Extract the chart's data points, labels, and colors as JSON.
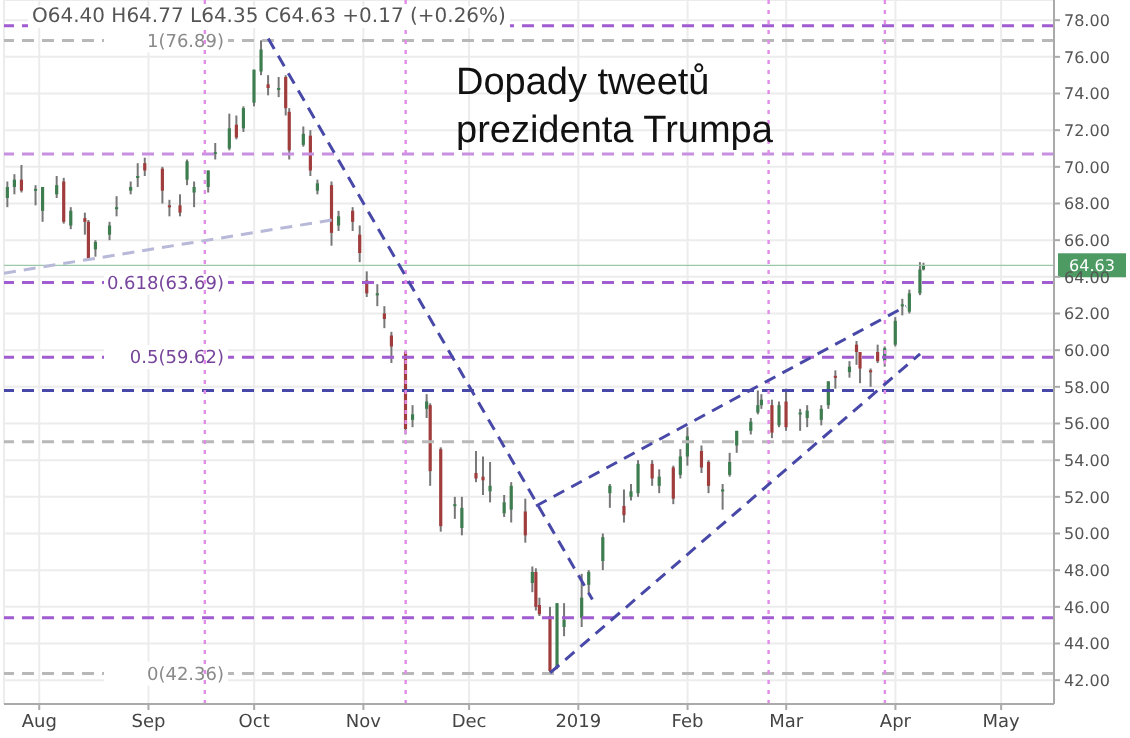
{
  "chart_data": {
    "type": "candlestick",
    "x": [
      "2018-07-23",
      "2018-07-25",
      "2018-07-27",
      "2018-07-31",
      "2018-08-02",
      "2018-08-06",
      "2018-08-08",
      "2018-08-10",
      "2018-08-14",
      "2018-08-15",
      "2018-08-17",
      "2018-08-21",
      "2018-08-23",
      "2018-08-27",
      "2018-08-29",
      "2018-08-31",
      "2018-09-05",
      "2018-09-07",
      "2018-09-10",
      "2018-09-12",
      "2018-09-14",
      "2018-09-18",
      "2018-09-20",
      "2018-09-24",
      "2018-09-26",
      "2018-09-28",
      "2018-10-01",
      "2018-10-03",
      "2018-10-05",
      "2018-10-08",
      "2018-10-10",
      "2018-10-11",
      "2018-10-15",
      "2018-10-17",
      "2018-10-19",
      "2018-10-23",
      "2018-10-25",
      "2018-10-29",
      "2018-10-31",
      "2018-11-02",
      "2018-11-05",
      "2018-11-07",
      "2018-11-09",
      "2018-11-13",
      "2018-11-15",
      "2018-11-19",
      "2018-11-20",
      "2018-11-23",
      "2018-11-27",
      "2018-11-29",
      "2018-12-03",
      "2018-12-05",
      "2018-12-07",
      "2018-12-11",
      "2018-12-13",
      "2018-12-17",
      "2018-12-19",
      "2018-12-20",
      "2018-12-21",
      "2018-12-24",
      "2018-12-26",
      "2018-12-28",
      "2019-01-02",
      "2019-01-04",
      "2019-01-08",
      "2019-01-10",
      "2019-01-14",
      "2019-01-16",
      "2019-01-18",
      "2019-01-22",
      "2019-01-24",
      "2019-01-28",
      "2019-01-30",
      "2019-02-01",
      "2019-02-05",
      "2019-02-07",
      "2019-02-11",
      "2019-02-13",
      "2019-02-15",
      "2019-02-19",
      "2019-02-21",
      "2019-02-22",
      "2019-02-25",
      "2019-02-27",
      "2019-03-01",
      "2019-03-05",
      "2019-03-07",
      "2019-03-11",
      "2019-03-13",
      "2019-03-15",
      "2019-03-19",
      "2019-03-21",
      "2019-03-22",
      "2019-03-25",
      "2019-03-27",
      "2019-03-29",
      "2019-04-01",
      "2019-04-03",
      "2019-04-05",
      "2019-04-08",
      "2019-04-09"
    ],
    "ohlc": [
      [
        68.3,
        69.2,
        67.8,
        68.9
      ],
      [
        68.9,
        69.6,
        68.5,
        69.3
      ],
      [
        69.3,
        70.1,
        68.6,
        68.7
      ],
      [
        68.7,
        69.0,
        67.9,
        68.8
      ],
      [
        67.6,
        68.9,
        67.0,
        68.9
      ],
      [
        68.5,
        69.5,
        68.3,
        69.0
      ],
      [
        69.2,
        69.4,
        66.9,
        67.0
      ],
      [
        66.8,
        67.8,
        66.6,
        67.6
      ],
      [
        67.2,
        67.5,
        66.3,
        67.0
      ],
      [
        67.0,
        67.1,
        64.9,
        65.0
      ],
      [
        65.5,
        66.0,
        65.1,
        65.9
      ],
      [
        66.3,
        67.0,
        66.0,
        66.8
      ],
      [
        67.7,
        68.4,
        67.3,
        67.8
      ],
      [
        68.7,
        69.2,
        68.5,
        68.9
      ],
      [
        69.5,
        70.2,
        68.9,
        69.5
      ],
      [
        70.2,
        70.5,
        69.5,
        69.8
      ],
      [
        69.9,
        70.0,
        68.0,
        68.7
      ],
      [
        67.9,
        68.2,
        67.3,
        67.8
      ],
      [
        67.9,
        68.5,
        67.3,
        67.5
      ],
      [
        69.3,
        70.4,
        69.0,
        70.3
      ],
      [
        68.6,
        69.2,
        67.8,
        68.9
      ],
      [
        68.9,
        69.8,
        68.6,
        69.8
      ],
      [
        70.8,
        71.3,
        70.4,
        70.8
      ],
      [
        71.0,
        72.9,
        70.9,
        72.1
      ],
      [
        72.3,
        72.8,
        71.5,
        71.6
      ],
      [
        72.1,
        73.3,
        71.9,
        73.2
      ],
      [
        73.5,
        75.3,
        73.3,
        75.3
      ],
      [
        75.2,
        76.9,
        75.0,
        76.4
      ],
      [
        74.5,
        75.0,
        73.9,
        74.3
      ],
      [
        74.3,
        74.9,
        73.8,
        74.3
      ],
      [
        74.9,
        75.0,
        72.8,
        73.2
      ],
      [
        73.0,
        73.2,
        70.4,
        70.9
      ],
      [
        71.2,
        72.2,
        71.1,
        71.8
      ],
      [
        71.7,
        72.0,
        69.5,
        69.8
      ],
      [
        68.7,
        69.3,
        68.5,
        69.1
      ],
      [
        69.0,
        69.2,
        65.7,
        66.4
      ],
      [
        66.8,
        67.6,
        66.5,
        67.3
      ],
      [
        67.6,
        67.8,
        66.5,
        67.0
      ],
      [
        66.3,
        66.8,
        64.8,
        65.3
      ],
      [
        63.8,
        64.3,
        62.9,
        63.1
      ],
      [
        63.1,
        63.6,
        62.4,
        63.1
      ],
      [
        62.0,
        62.4,
        61.2,
        61.7
      ],
      [
        60.8,
        61.0,
        59.3,
        60.2
      ],
      [
        59.9,
        60.0,
        55.4,
        55.7
      ],
      [
        56.2,
        57.0,
        55.8,
        56.5
      ],
      [
        56.8,
        57.6,
        56.3,
        57.2
      ],
      [
        57.0,
        57.1,
        52.6,
        53.4
      ],
      [
        54.6,
        54.7,
        50.1,
        50.4
      ],
      [
        51.5,
        52.0,
        50.8,
        51.6
      ],
      [
        50.3,
        52.0,
        49.9,
        51.4
      ],
      [
        53.3,
        54.5,
        52.8,
        53.0
      ],
      [
        53.1,
        54.2,
        52.1,
        52.9
      ],
      [
        52.3,
        53.9,
        51.7,
        52.6
      ],
      [
        51.1,
        52.1,
        50.9,
        51.7
      ],
      [
        51.3,
        52.8,
        50.6,
        52.6
      ],
      [
        51.2,
        51.9,
        49.5,
        49.9
      ],
      [
        47.3,
        48.2,
        46.8,
        47.9
      ],
      [
        47.9,
        48.1,
        45.8,
        46.0
      ],
      [
        46.1,
        46.5,
        45.5,
        45.6
      ],
      [
        45.5,
        46.0,
        42.4,
        42.5
      ],
      [
        42.7,
        46.2,
        42.6,
        46.2
      ],
      [
        44.9,
        46.2,
        44.4,
        45.3
      ],
      [
        45.4,
        47.8,
        44.9,
        46.5
      ],
      [
        47.2,
        48.0,
        46.7,
        47.9
      ],
      [
        48.5,
        50.0,
        48.0,
        49.8
      ],
      [
        52.2,
        52.7,
        51.4,
        52.6
      ],
      [
        51.5,
        52.4,
        50.6,
        51.0
      ],
      [
        52.0,
        52.7,
        51.8,
        52.3
      ],
      [
        52.2,
        54.0,
        52.0,
        53.8
      ],
      [
        53.8,
        54.0,
        52.6,
        53.0
      ],
      [
        52.6,
        53.5,
        52.2,
        53.1
      ],
      [
        53.6,
        53.7,
        51.6,
        51.9
      ],
      [
        53.2,
        54.6,
        53.0,
        54.2
      ],
      [
        54.2,
        55.8,
        53.7,
        55.3
      ],
      [
        54.5,
        54.8,
        53.3,
        53.6
      ],
      [
        53.9,
        54.0,
        52.2,
        52.6
      ],
      [
        52.3,
        52.7,
        51.3,
        52.4
      ],
      [
        53.2,
        54.4,
        53.1,
        53.9
      ],
      [
        54.8,
        55.6,
        54.4,
        55.6
      ],
      [
        55.6,
        56.3,
        55.4,
        56.1
      ],
      [
        56.6,
        57.8,
        56.5,
        57.0
      ],
      [
        57.0,
        57.6,
        56.8,
        57.3
      ],
      [
        57.0,
        57.3,
        55.2,
        55.5
      ],
      [
        55.9,
        57.2,
        55.8,
        57.0
      ],
      [
        57.2,
        57.9,
        55.6,
        55.8
      ],
      [
        56.6,
        56.8,
        55.6,
        56.6
      ],
      [
        56.3,
        57.0,
        55.8,
        56.7
      ],
      [
        56.2,
        57.0,
        55.9,
        56.8
      ],
      [
        57.0,
        58.3,
        56.8,
        58.3
      ],
      [
        58.6,
        58.9,
        57.9,
        58.5
      ],
      [
        58.8,
        59.4,
        58.5,
        59.1
      ],
      [
        60.3,
        60.5,
        59.2,
        59.9
      ],
      [
        59.9,
        59.9,
        58.2,
        59.0
      ],
      [
        58.9,
        59.0,
        58.0,
        58.8
      ],
      [
        59.9,
        60.3,
        59.3,
        59.4
      ],
      [
        59.4,
        60.2,
        59.1,
        60.1
      ],
      [
        60.3,
        61.8,
        60.2,
        61.6
      ],
      [
        62.5,
        62.8,
        61.9,
        62.5
      ],
      [
        62.1,
        63.3,
        62.0,
        63.1
      ],
      [
        63.1,
        64.8,
        63.0,
        64.4
      ],
      [
        64.4,
        64.77,
        64.35,
        64.63
      ]
    ],
    "series": [
      {
        "type": "line",
        "x": [
          "2018-10-05",
          "2019-01-05"
        ],
        "values": [
          77.0,
          46.4
        ],
        "color": "#4848a8",
        "line_style": "dashed"
      },
      {
        "type": "line",
        "x": [
          "2018-12-20",
          "2019-04-04"
        ],
        "values": [
          51.5,
          62.4
        ],
        "color": "#4848a8",
        "line_style": "dashed"
      },
      {
        "type": "line",
        "x": [
          "2018-12-24",
          "2019-04-08"
        ],
        "values": [
          42.4,
          59.8
        ],
        "color": "#4848a8",
        "line_style": "dashed"
      },
      {
        "type": "line",
        "x": [
          "2018-07-22",
          "2018-10-23"
        ],
        "values": [
          64.2,
          67.1
        ],
        "color": "#b8b8d8",
        "line_style": "dashed"
      }
    ],
    "xlim": [
      "2018-07-22",
      "2019-05-16"
    ],
    "xticks": [
      {
        "value": "2018-08-01",
        "label": "Aug"
      },
      {
        "value": "2018-09-01",
        "label": "Sep"
      },
      {
        "value": "2018-10-01",
        "label": "Oct"
      },
      {
        "value": "2018-11-01",
        "label": "Nov"
      },
      {
        "value": "2018-12-01",
        "label": "Dec"
      },
      {
        "value": "2019-01-01",
        "label": "2019"
      },
      {
        "value": "2019-02-01",
        "label": "Feb"
      },
      {
        "value": "2019-03-01",
        "label": "Mar"
      },
      {
        "value": "2019-04-01",
        "label": "Apr"
      },
      {
        "value": "2019-05-01",
        "label": "May"
      }
    ],
    "ylim": [
      40.7,
      79.1
    ],
    "yticks": [
      {
        "value": 42,
        "label": "42.00"
      },
      {
        "value": 44,
        "label": "44.00"
      },
      {
        "value": 46,
        "label": "46.00"
      },
      {
        "value": 48,
        "label": "48.00"
      },
      {
        "value": 50,
        "label": "50.00"
      },
      {
        "value": 52,
        "label": "52.00"
      },
      {
        "value": 54,
        "label": "54.00"
      },
      {
        "value": 56,
        "label": "56.00"
      },
      {
        "value": 58,
        "label": "58.00"
      },
      {
        "value": 60,
        "label": "60.00"
      },
      {
        "value": 62,
        "label": "62.00"
      },
      {
        "value": 64,
        "label": "64.00"
      },
      {
        "value": 66,
        "label": "66.00"
      },
      {
        "value": 68,
        "label": "68.00"
      },
      {
        "value": 70,
        "label": "70.00"
      },
      {
        "value": 72,
        "label": "72.00"
      },
      {
        "value": 74,
        "label": "74.00"
      },
      {
        "value": 76,
        "label": "76.00"
      },
      {
        "value": 78,
        "label": "78.00"
      }
    ],
    "grid": true,
    "annotations": [
      "O64.40 H64.77 L64.35 C64.63 +0.17 (+0.26%)",
      "Dopady tweetů prezidenta Trumpa"
    ],
    "ref_lines": [
      {
        "axis": "y",
        "value": 77.7,
        "label": null,
        "color": "#a05cd0",
        "line_style": "dashed"
      },
      {
        "axis": "y",
        "value": 76.89,
        "label": "1(76.89)",
        "color": "#b8b8b8",
        "line_style": "dashed"
      },
      {
        "axis": "y",
        "value": 70.7,
        "label": null,
        "color": "#c890e0",
        "line_style": "dashed"
      },
      {
        "axis": "y",
        "value": 64.63,
        "label": "64.63",
        "color": "#9cc8a8",
        "line_style": "solid"
      },
      {
        "axis": "y",
        "value": 63.69,
        "label": "0.618(63.69)",
        "color": "#a05cd0",
        "line_style": "dashed"
      },
      {
        "axis": "y",
        "value": 59.62,
        "label": "0.5(59.62)",
        "color": "#a05cd0",
        "line_style": "dashed"
      },
      {
        "axis": "y",
        "value": 57.8,
        "label": null,
        "color": "#4848a8",
        "line_style": "dashed"
      },
      {
        "axis": "y",
        "value": 55.0,
        "label": null,
        "color": "#b8b8b8",
        "line_style": "dashed"
      },
      {
        "axis": "y",
        "value": 45.4,
        "label": null,
        "color": "#a05cd0",
        "line_style": "dashed"
      },
      {
        "axis": "y",
        "value": 42.36,
        "label": "0(42.36)",
        "color": "#b8b8b8",
        "line_style": "dashed"
      },
      {
        "axis": "x",
        "value": "2018-09-17",
        "label": null,
        "color": "#e08ce8",
        "line_style": "dotted"
      },
      {
        "axis": "x",
        "value": "2018-11-13",
        "label": null,
        "color": "#e08ce8",
        "line_style": "dotted"
      },
      {
        "axis": "x",
        "value": "2019-02-24",
        "label": null,
        "color": "#e08ce8",
        "line_style": "dotted"
      },
      {
        "axis": "x",
        "value": "2019-03-29",
        "label": null,
        "color": "#e08ce8",
        "line_style": "dotted"
      }
    ]
  }
}
